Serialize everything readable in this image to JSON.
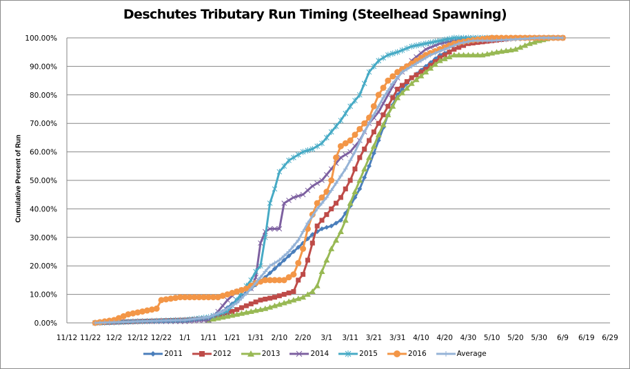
{
  "chart_data": {
    "type": "line",
    "title": "Deschutes Tributary Run Timing (Steelhead Spawning)",
    "xlabel": "",
    "ylabel": "Cumulative Percent of Run",
    "x_tick_labels": [
      "11/12",
      "11/22",
      "12/2",
      "12/12",
      "12/22",
      "1/1",
      "1/11",
      "1/21",
      "1/31",
      "2/10",
      "2/20",
      "3/1",
      "3/11",
      "3/21",
      "3/31",
      "4/10",
      "4/20",
      "4/30",
      "5/10",
      "5/20",
      "5/30",
      "6/9",
      "6/19",
      "6/29"
    ],
    "x_unit": "days since 11/12",
    "xlim": [
      0,
      230
    ],
    "y_tick_labels": [
      "0.00%",
      "10.00%",
      "20.00%",
      "30.00%",
      "40.00%",
      "50.00%",
      "60.00%",
      "70.00%",
      "80.00%",
      "90.00%",
      "100.00%"
    ],
    "ylim": [
      0,
      100
    ],
    "grid": "horizontal",
    "legend_position": "bottom",
    "series": [
      {
        "name": "2011",
        "color": "#4a7ebb",
        "marker": "diamond",
        "x": [
          12,
          20,
          30,
          40,
          50,
          60,
          66,
          72,
          78,
          84,
          88,
          92,
          96,
          100,
          104,
          108,
          112,
          116,
          120,
          124,
          128,
          132,
          136,
          140,
          146,
          152,
          158,
          164,
          170,
          176,
          180
        ],
        "y": [
          0,
          0.5,
          0.5,
          0.5,
          1,
          1.5,
          4,
          8,
          12,
          16,
          19,
          22,
          25,
          28,
          31,
          33,
          34,
          36,
          41,
          47,
          55,
          64,
          73,
          80,
          86,
          90,
          94,
          96,
          98,
          99,
          100
        ]
      },
      {
        "name": "2012",
        "color": "#be4b48",
        "marker": "square",
        "x": [
          12,
          30,
          50,
          60,
          70,
          76,
          82,
          88,
          92,
          96,
          98,
          100,
          102,
          104,
          106,
          108,
          112,
          116,
          120,
          124,
          128,
          132,
          136,
          140,
          146,
          152,
          158,
          164,
          170,
          180,
          190,
          210
        ],
        "y": [
          0,
          0.5,
          1,
          1.5,
          4,
          6,
          8,
          9,
          10,
          11,
          15,
          17,
          22,
          28,
          34,
          36,
          40,
          44,
          50,
          58,
          64,
          70,
          76,
          82,
          86,
          89,
          93,
          96,
          98,
          99,
          100,
          100
        ]
      },
      {
        "name": "2013",
        "color": "#98b954",
        "marker": "triangle",
        "x": [
          60,
          66,
          72,
          78,
          84,
          88,
          92,
          96,
          100,
          102,
          104,
          106,
          108,
          110,
          112,
          114,
          116,
          118,
          120,
          124,
          128,
          132,
          136,
          140,
          146,
          152,
          158,
          164,
          170,
          176,
          182,
          190,
          196,
          200,
          205
        ],
        "y": [
          1,
          2,
          3,
          4,
          5,
          6,
          7,
          8,
          9,
          10,
          11,
          13,
          18,
          22,
          26,
          29,
          32,
          36,
          42,
          50,
          58,
          66,
          73,
          79,
          84,
          88,
          92,
          94,
          94,
          94,
          95,
          96,
          98,
          99,
          100
        ]
      },
      {
        "name": "2014",
        "color": "#7d60a0",
        "marker": "x",
        "x": [
          12,
          30,
          50,
          60,
          64,
          68,
          72,
          76,
          78,
          80,
          82,
          84,
          86,
          88,
          90,
          92,
          96,
          100,
          104,
          108,
          112,
          116,
          120,
          124,
          128,
          132,
          136,
          140,
          146,
          152,
          158,
          164,
          170,
          180
        ],
        "y": [
          0,
          0.5,
          0.5,
          1,
          4,
          8,
          11,
          12,
          12,
          16,
          28,
          32,
          33,
          33,
          33,
          42,
          44,
          45,
          48,
          50,
          54,
          58,
          60,
          64,
          70,
          74,
          80,
          86,
          92,
          96,
          98,
          99,
          100,
          100
        ]
      },
      {
        "name": "2015",
        "color": "#46aac5",
        "marker": "asterisk",
        "x": [
          12,
          30,
          50,
          60,
          68,
          72,
          76,
          78,
          80,
          82,
          84,
          86,
          88,
          90,
          92,
          94,
          96,
          100,
          104,
          108,
          112,
          116,
          120,
          124,
          128,
          132,
          136,
          140,
          146,
          152,
          158,
          164,
          170,
          180
        ],
        "y": [
          0,
          0.5,
          1,
          2,
          4,
          8,
          13,
          15,
          18,
          20,
          30,
          42,
          47,
          53,
          55,
          57,
          58,
          60,
          61,
          63,
          67,
          71,
          76,
          80,
          88,
          92,
          94,
          95,
          97,
          98,
          99,
          100,
          100,
          100
        ]
      },
      {
        "name": "2016",
        "color": "#f39647",
        "marker": "circle",
        "x": [
          12,
          20,
          26,
          32,
          38,
          40,
          48,
          50,
          56,
          60,
          64,
          68,
          72,
          76,
          80,
          84,
          88,
          92,
          94,
          96,
          98,
          100,
          102,
          104,
          106,
          108,
          110,
          112,
          114,
          116,
          120,
          124,
          128,
          132,
          136,
          140,
          146,
          152,
          158,
          164,
          170,
          180,
          190,
          210
        ],
        "y": [
          0,
          1,
          3,
          4,
          5,
          8,
          9,
          9,
          9,
          9,
          9,
          10,
          11,
          12,
          14,
          15,
          15,
          15,
          16,
          17,
          21,
          26,
          33,
          38,
          42,
          44,
          46,
          50,
          58,
          62,
          64,
          68,
          72,
          80,
          85,
          88,
          91,
          94,
          96,
          98,
          99,
          100,
          100,
          100
        ]
      },
      {
        "name": "Average",
        "color": "#95b3d7",
        "marker": "plus",
        "x": [
          12,
          30,
          50,
          60,
          66,
          72,
          78,
          82,
          86,
          90,
          94,
          98,
          102,
          106,
          110,
          114,
          118,
          122,
          126,
          130,
          134,
          138,
          142,
          148,
          154,
          160,
          166,
          172,
          180,
          190,
          200,
          210
        ],
        "y": [
          0,
          0.5,
          1,
          2,
          4,
          7,
          12,
          16,
          20,
          22,
          25,
          29,
          35,
          40,
          44,
          49,
          54,
          60,
          67,
          73,
          79,
          84,
          88,
          91,
          94,
          96,
          98,
          99,
          99,
          99.5,
          100,
          100
        ]
      }
    ]
  }
}
